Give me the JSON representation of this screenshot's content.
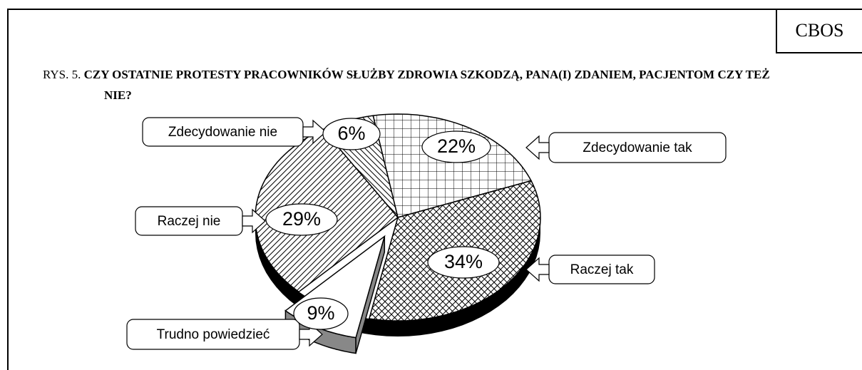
{
  "chart_data": {
    "type": "pie",
    "source": "CBOS",
    "figure_label": "RYS. 5.",
    "title": "CZY OSTATNIE PROTESTY PRACOWNIKÓW SŁUŻBY ZDROWIA SZKODZĄ, PANA(I) ZDANIEM, PACJENTOM CZY TEŻ NIE?",
    "categories": [
      "Zdecydowanie tak",
      "Raczej tak",
      "Trudno powiedzieć",
      "Raczej nie",
      "Zdecydowanie nie"
    ],
    "values": [
      22,
      34,
      9,
      29,
      6
    ],
    "value_labels": [
      "22%",
      "34%",
      "9%",
      "29%",
      "6%"
    ]
  }
}
